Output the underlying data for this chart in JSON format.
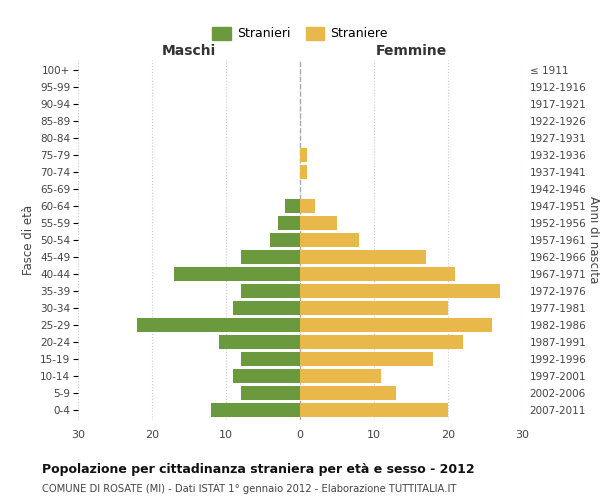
{
  "age_groups": [
    "0-4",
    "5-9",
    "10-14",
    "15-19",
    "20-24",
    "25-29",
    "30-34",
    "35-39",
    "40-44",
    "45-49",
    "50-54",
    "55-59",
    "60-64",
    "65-69",
    "70-74",
    "75-79",
    "80-84",
    "85-89",
    "90-94",
    "95-99",
    "100+"
  ],
  "birth_years": [
    "2007-2011",
    "2002-2006",
    "1997-2001",
    "1992-1996",
    "1987-1991",
    "1982-1986",
    "1977-1981",
    "1972-1976",
    "1967-1971",
    "1962-1966",
    "1957-1961",
    "1952-1956",
    "1947-1951",
    "1942-1946",
    "1937-1941",
    "1932-1936",
    "1927-1931",
    "1922-1926",
    "1917-1921",
    "1912-1916",
    "≤ 1911"
  ],
  "maschi": [
    12,
    8,
    9,
    8,
    11,
    22,
    9,
    8,
    17,
    8,
    4,
    3,
    2,
    0,
    0,
    0,
    0,
    0,
    0,
    0,
    0
  ],
  "femmine": [
    20,
    13,
    11,
    18,
    22,
    26,
    20,
    27,
    21,
    17,
    8,
    5,
    2,
    0,
    1,
    1,
    0,
    0,
    0,
    0,
    0
  ],
  "maschi_color": "#6b9a3e",
  "femmine_color": "#e8b84b",
  "background_color": "#ffffff",
  "grid_color": "#cccccc",
  "title": "Popolazione per cittadinanza straniera per età e sesso - 2012",
  "subtitle": "COMUNE DI ROSATE (MI) - Dati ISTAT 1° gennaio 2012 - Elaborazione TUTTITALIA.IT",
  "xlabel_left": "Maschi",
  "xlabel_right": "Femmine",
  "ylabel_left": "Fasce di età",
  "ylabel_right": "Anni di nascita",
  "legend_maschi": "Stranieri",
  "legend_femmine": "Straniere",
  "xlim": 30,
  "bar_height": 0.82
}
